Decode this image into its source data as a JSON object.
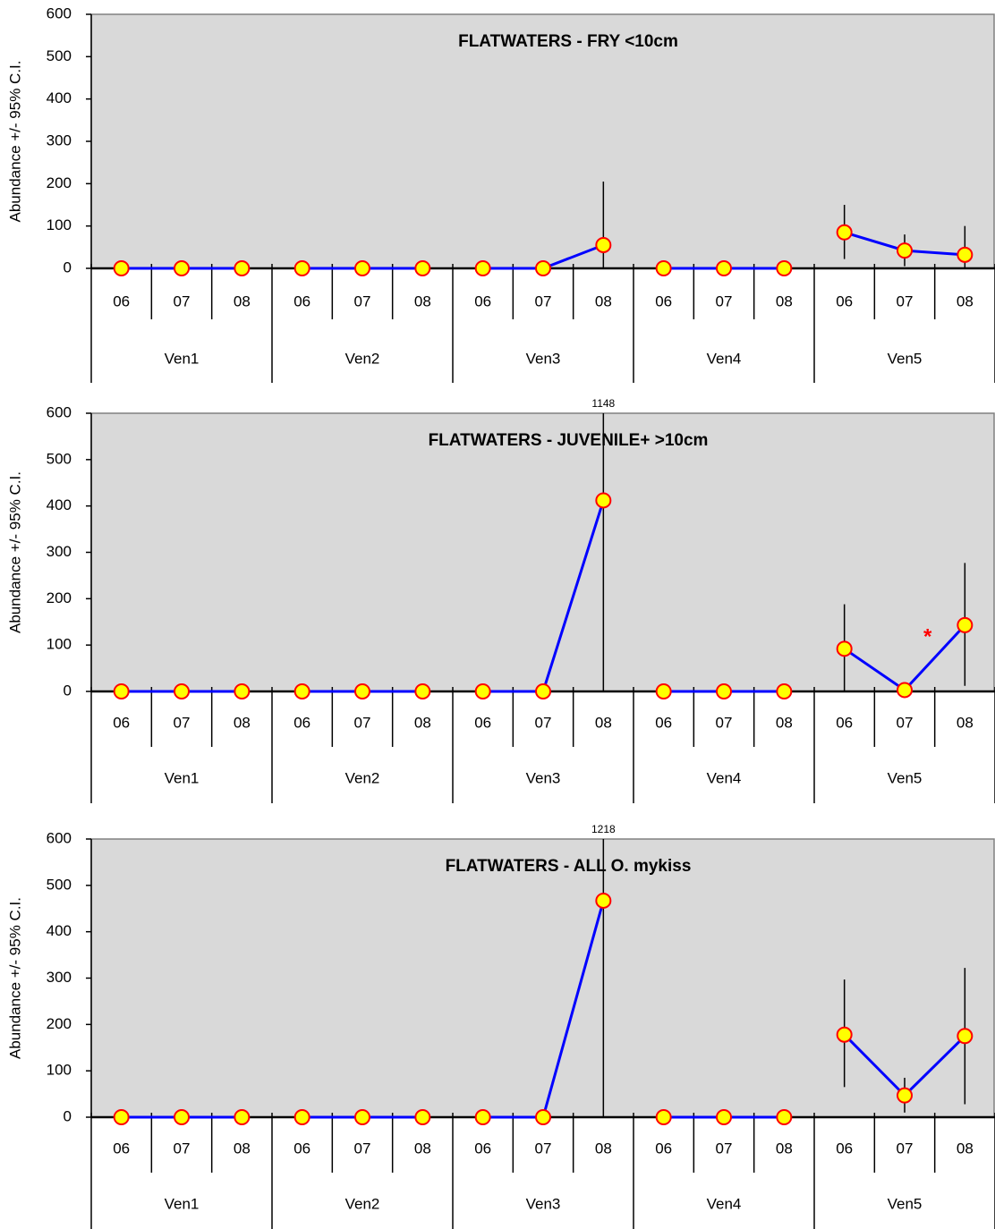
{
  "chart_data": [
    {
      "type": "line",
      "title": "FLATWATERS - FRY <10cm",
      "ylabel": "Abundance +/- 95% C.I.",
      "categories": [
        "06",
        "07",
        "08",
        "06",
        "07",
        "08",
        "06",
        "07",
        "08",
        "06",
        "07",
        "08",
        "06",
        "07",
        "08"
      ],
      "groups": [
        "Ven1",
        "Ven2",
        "Ven3",
        "Ven4",
        "Ven5"
      ],
      "values": [
        0,
        0,
        0,
        0,
        0,
        0,
        0,
        0,
        55,
        0,
        0,
        0,
        85,
        42,
        32
      ],
      "ci_low": [
        null,
        null,
        null,
        null,
        null,
        null,
        null,
        null,
        0,
        null,
        null,
        null,
        22,
        5,
        0
      ],
      "ci_high": [
        null,
        null,
        null,
        null,
        null,
        null,
        null,
        null,
        205,
        null,
        null,
        null,
        150,
        80,
        100
      ],
      "ylim": [
        0,
        600
      ],
      "yticks": [
        0,
        100,
        200,
        300,
        400,
        500,
        600
      ],
      "color": "#0000ff",
      "marker_color": "#ffff00",
      "marker_edge": "#ff0000"
    },
    {
      "type": "line",
      "title": "FLATWATERS - JUVENILE+ >10cm",
      "ylabel": "Abundance +/- 95% C.I.",
      "categories": [
        "06",
        "07",
        "08",
        "06",
        "07",
        "08",
        "06",
        "07",
        "08",
        "06",
        "07",
        "08",
        "06",
        "07",
        "08"
      ],
      "groups": [
        "Ven1",
        "Ven2",
        "Ven3",
        "Ven4",
        "Ven5"
      ],
      "values": [
        0,
        0,
        0,
        0,
        0,
        0,
        0,
        0,
        412,
        0,
        0,
        0,
        92,
        3,
        143
      ],
      "ci_low": [
        null,
        null,
        null,
        null,
        null,
        null,
        null,
        null,
        0,
        null,
        null,
        null,
        0,
        -12,
        12
      ],
      "ci_high": [
        null,
        null,
        null,
        null,
        null,
        null,
        null,
        null,
        1148,
        null,
        null,
        null,
        188,
        15,
        277
      ],
      "ylim": [
        0,
        600
      ],
      "yticks": [
        0,
        100,
        200,
        300,
        400,
        500,
        600
      ],
      "color": "#0000ff",
      "marker_color": "#ffff00",
      "marker_edge": "#ff0000",
      "annotation": "*",
      "annotation_color": "#ff0000"
    },
    {
      "type": "line",
      "title": "FLATWATERS - ALL O. mykiss",
      "ylabel": "Abundance +/- 95% C.I.",
      "categories": [
        "06",
        "07",
        "08",
        "06",
        "07",
        "08",
        "06",
        "07",
        "08",
        "06",
        "07",
        "08",
        "06",
        "07",
        "08"
      ],
      "groups": [
        "Ven1",
        "Ven2",
        "Ven3",
        "Ven4",
        "Ven5"
      ],
      "values": [
        0,
        0,
        0,
        0,
        0,
        0,
        0,
        0,
        467,
        0,
        0,
        0,
        178,
        47,
        175
      ],
      "ci_low": [
        null,
        null,
        null,
        null,
        null,
        null,
        null,
        null,
        0,
        null,
        null,
        null,
        65,
        10,
        28
      ],
      "ci_high": [
        null,
        null,
        null,
        null,
        null,
        null,
        null,
        null,
        1218,
        null,
        null,
        null,
        297,
        85,
        322
      ],
      "ylim": [
        0,
        600
      ],
      "yticks": [
        0,
        100,
        200,
        300,
        400,
        500,
        600
      ],
      "color": "#0000ff",
      "marker_color": "#ffff00",
      "marker_edge": "#ff0000"
    }
  ]
}
